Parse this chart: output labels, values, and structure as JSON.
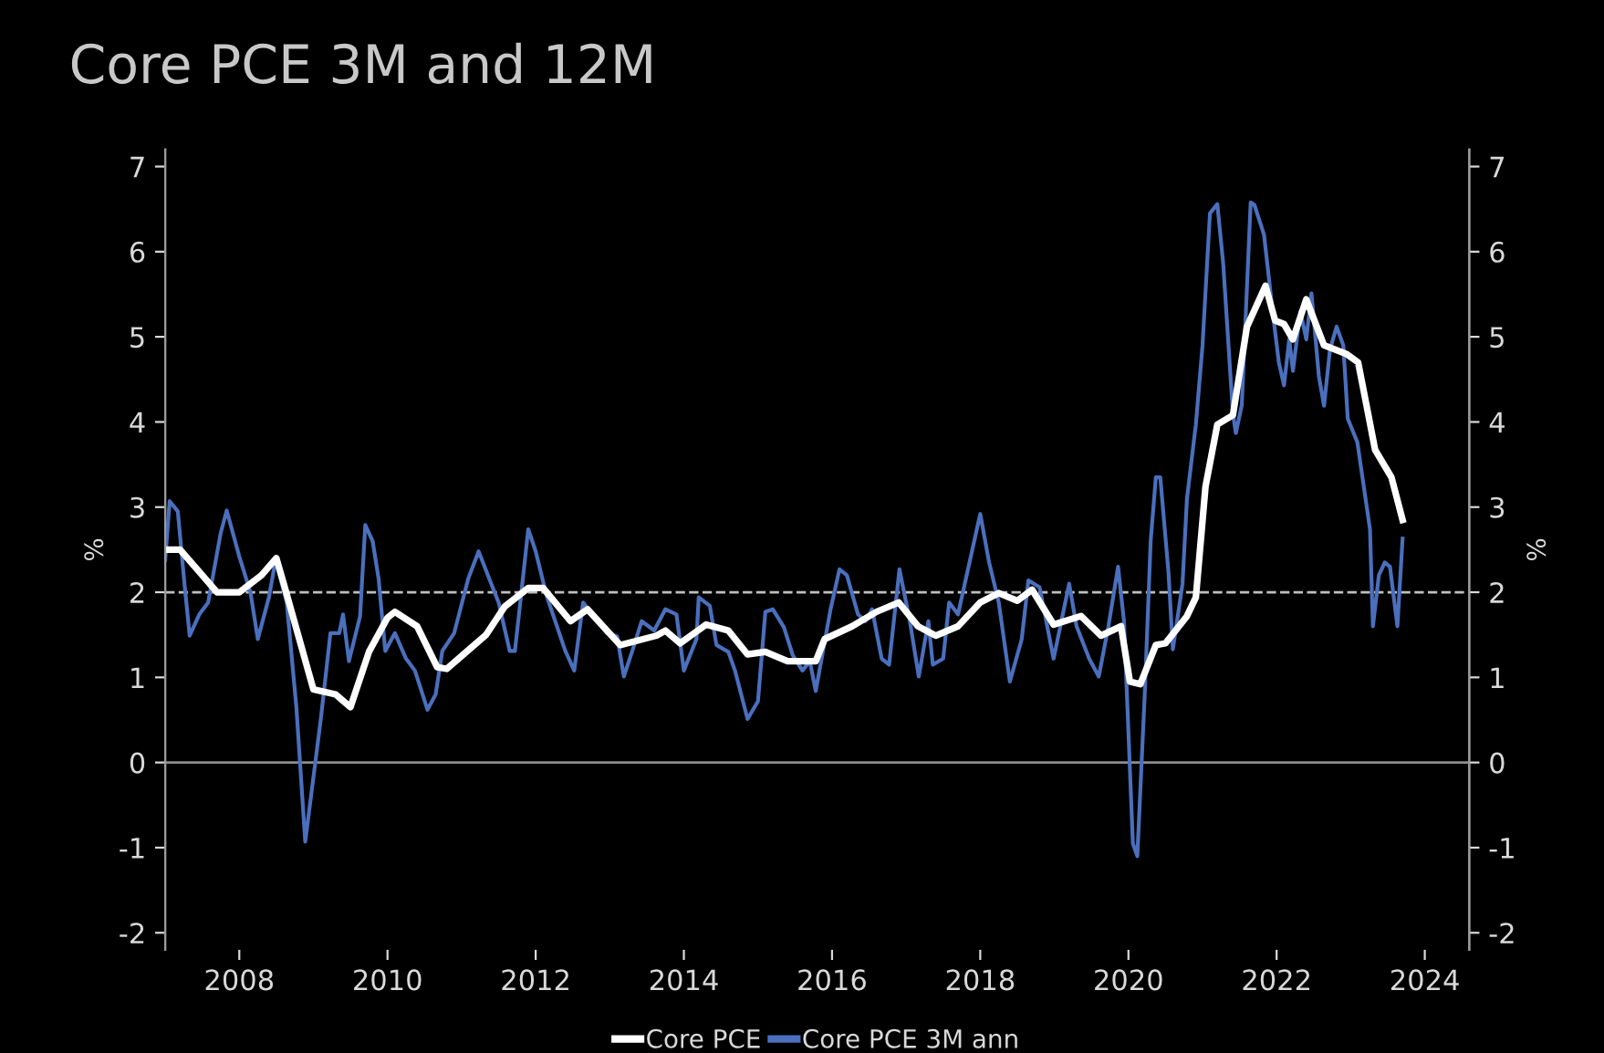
{
  "chart_data": {
    "type": "line",
    "title": "Core PCE 3M and 12M",
    "ylabel": "%",
    "y2label": "%",
    "xlim": [
      2007,
      2024.6
    ],
    "xticks": [
      2008,
      2010,
      2012,
      2014,
      2016,
      2018,
      2020,
      2022,
      2024
    ],
    "ylim": [
      -2.2,
      7.2
    ],
    "yticks": [
      -2,
      -1,
      0,
      1,
      2,
      3,
      4,
      5,
      6,
      7
    ],
    "y2lim": [
      -2.2,
      7.2
    ],
    "y2ticks": [
      -2,
      -1,
      0,
      1,
      2,
      3,
      4,
      5,
      6,
      7
    ],
    "grid": false,
    "legend": "bottom",
    "marker": "none",
    "line_style": "solid",
    "ref_lines": [
      {
        "axis": "y",
        "value": 2,
        "color": "#bfbfbf",
        "line_style": "dashed"
      },
      {
        "axis": "y",
        "value": 0,
        "color": "#8c8c8c",
        "line_style": "solid"
      }
    ],
    "series": [
      {
        "name": "Core PCE",
        "color": "#ffffff",
        "x": [
          2007.0,
          2007.2,
          2007.5,
          2007.7,
          2008.0,
          2008.3,
          2008.5,
          2008.6,
          2009.0,
          2009.3,
          2009.5,
          2009.75,
          2010.0,
          2010.1,
          2010.4,
          2010.67,
          2010.8,
          2011.33,
          2011.58,
          2011.9,
          2012.1,
          2012.47,
          2012.7,
          2013.14,
          2013.63,
          2013.75,
          2013.95,
          2014.3,
          2014.6,
          2014.86,
          2015.1,
          2015.4,
          2015.78,
          2015.9,
          2016.27,
          2016.6,
          2016.9,
          2017.16,
          2017.4,
          2017.7,
          2018.0,
          2018.25,
          2018.5,
          2018.7,
          2018.99,
          2019.36,
          2019.63,
          2019.9,
          2020.02,
          2020.16,
          2020.37,
          2020.5,
          2020.79,
          2020.91,
          2021.04,
          2021.2,
          2021.41,
          2021.6,
          2021.85,
          2021.98,
          2022.1,
          2022.22,
          2022.4,
          2022.64,
          2022.94,
          2023.1,
          2023.21,
          2023.33,
          2023.55,
          2023.7
        ],
        "values": [
          2.5,
          2.5,
          2.2,
          2.0,
          2.0,
          2.2,
          2.4,
          2.1,
          0.86,
          0.8,
          0.65,
          1.3,
          1.7,
          1.77,
          1.6,
          1.12,
          1.1,
          1.5,
          1.83,
          2.05,
          2.05,
          1.66,
          1.8,
          1.38,
          1.49,
          1.55,
          1.4,
          1.62,
          1.55,
          1.27,
          1.3,
          1.19,
          1.19,
          1.45,
          1.6,
          1.77,
          1.88,
          1.6,
          1.49,
          1.6,
          1.88,
          1.99,
          1.9,
          2.03,
          1.62,
          1.72,
          1.49,
          1.6,
          0.95,
          0.92,
          1.38,
          1.4,
          1.72,
          1.94,
          3.24,
          3.97,
          4.08,
          5.12,
          5.6,
          5.19,
          5.15,
          4.97,
          5.44,
          4.9,
          4.8,
          4.7,
          4.21,
          3.67,
          3.35,
          2.85
        ]
      },
      {
        "name": "Core PCE 3M ann",
        "color": "#4a6fbd",
        "x": [
          2007.0,
          2007.06,
          2007.17,
          2007.26,
          2007.33,
          2007.46,
          2007.58,
          2007.75,
          2007.83,
          2008.0,
          2008.15,
          2008.25,
          2008.4,
          2008.49,
          2008.64,
          2008.77,
          2008.89,
          2009.1,
          2009.23,
          2009.35,
          2009.4,
          2009.48,
          2009.63,
          2009.7,
          2009.8,
          2009.88,
          2009.97,
          2010.1,
          2010.25,
          2010.37,
          2010.54,
          2010.65,
          2010.74,
          2010.9,
          2011.09,
          2011.23,
          2011.4,
          2011.5,
          2011.65,
          2011.72,
          2011.9,
          2012.0,
          2012.15,
          2012.4,
          2012.52,
          2012.64,
          2012.77,
          2012.96,
          2013.1,
          2013.19,
          2013.3,
          2013.43,
          2013.6,
          2013.75,
          2013.9,
          2014.0,
          2014.17,
          2014.2,
          2014.35,
          2014.44,
          2014.6,
          2014.69,
          2014.86,
          2015.0,
          2015.1,
          2015.2,
          2015.35,
          2015.47,
          2015.6,
          2015.7,
          2015.78,
          2015.98,
          2016.1,
          2016.2,
          2016.35,
          2016.45,
          2016.54,
          2016.67,
          2016.77,
          2016.91,
          2017.05,
          2017.17,
          2017.3,
          2017.36,
          2017.5,
          2017.58,
          2017.7,
          2018.0,
          2018.12,
          2018.25,
          2018.4,
          2018.56,
          2018.65,
          2018.8,
          2018.99,
          2019.2,
          2019.3,
          2019.47,
          2019.6,
          2019.73,
          2019.86,
          2019.94,
          2020.06,
          2020.12,
          2020.22,
          2020.3,
          2020.37,
          2020.43,
          2020.54,
          2020.6,
          2020.73,
          2020.79,
          2020.91,
          2021.0,
          2021.1,
          2021.2,
          2021.28,
          2021.41,
          2021.45,
          2021.53,
          2021.65,
          2021.7,
          2021.83,
          2021.95,
          2022.03,
          2022.1,
          2022.17,
          2022.22,
          2022.32,
          2022.4,
          2022.47,
          2022.57,
          2022.64,
          2022.72,
          2022.81,
          2022.9,
          2022.96,
          2023.09,
          2023.26,
          2023.3,
          2023.38,
          2023.46,
          2023.53,
          2023.63,
          2023.7
        ],
        "values": [
          2.38,
          3.07,
          2.95,
          2.1,
          1.49,
          1.74,
          1.88,
          2.7,
          2.96,
          2.42,
          2.0,
          1.45,
          1.94,
          2.38,
          1.88,
          0.65,
          -0.93,
          0.51,
          1.52,
          1.52,
          1.74,
          1.19,
          1.72,
          2.79,
          2.6,
          2.16,
          1.31,
          1.52,
          1.22,
          1.08,
          0.62,
          0.8,
          1.31,
          1.52,
          2.16,
          2.48,
          2.1,
          1.88,
          1.31,
          1.31,
          2.74,
          2.48,
          1.95,
          1.31,
          1.08,
          1.88,
          1.74,
          1.52,
          1.48,
          1.01,
          1.3,
          1.66,
          1.55,
          1.8,
          1.74,
          1.08,
          1.45,
          1.94,
          1.84,
          1.38,
          1.3,
          1.08,
          0.51,
          0.72,
          1.77,
          1.8,
          1.59,
          1.26,
          1.08,
          1.19,
          0.84,
          1.8,
          2.27,
          2.2,
          1.74,
          1.66,
          1.8,
          1.22,
          1.15,
          2.27,
          1.66,
          1.01,
          1.66,
          1.15,
          1.22,
          1.88,
          1.74,
          2.92,
          2.35,
          1.88,
          0.95,
          1.45,
          2.14,
          2.06,
          1.22,
          2.1,
          1.6,
          1.22,
          1.01,
          1.6,
          2.3,
          1.66,
          -0.95,
          -1.1,
          0.8,
          2.6,
          3.35,
          3.35,
          2.24,
          1.33,
          2.1,
          3.1,
          3.97,
          4.9,
          6.45,
          6.56,
          5.85,
          4.1,
          3.87,
          4.2,
          6.58,
          6.55,
          6.2,
          5.27,
          4.7,
          4.43,
          4.97,
          4.6,
          5.3,
          4.97,
          5.51,
          4.54,
          4.19,
          4.85,
          5.12,
          4.9,
          4.04,
          3.76,
          2.74,
          1.6,
          2.2,
          2.35,
          2.3,
          1.6,
          2.63
        ]
      }
    ]
  }
}
